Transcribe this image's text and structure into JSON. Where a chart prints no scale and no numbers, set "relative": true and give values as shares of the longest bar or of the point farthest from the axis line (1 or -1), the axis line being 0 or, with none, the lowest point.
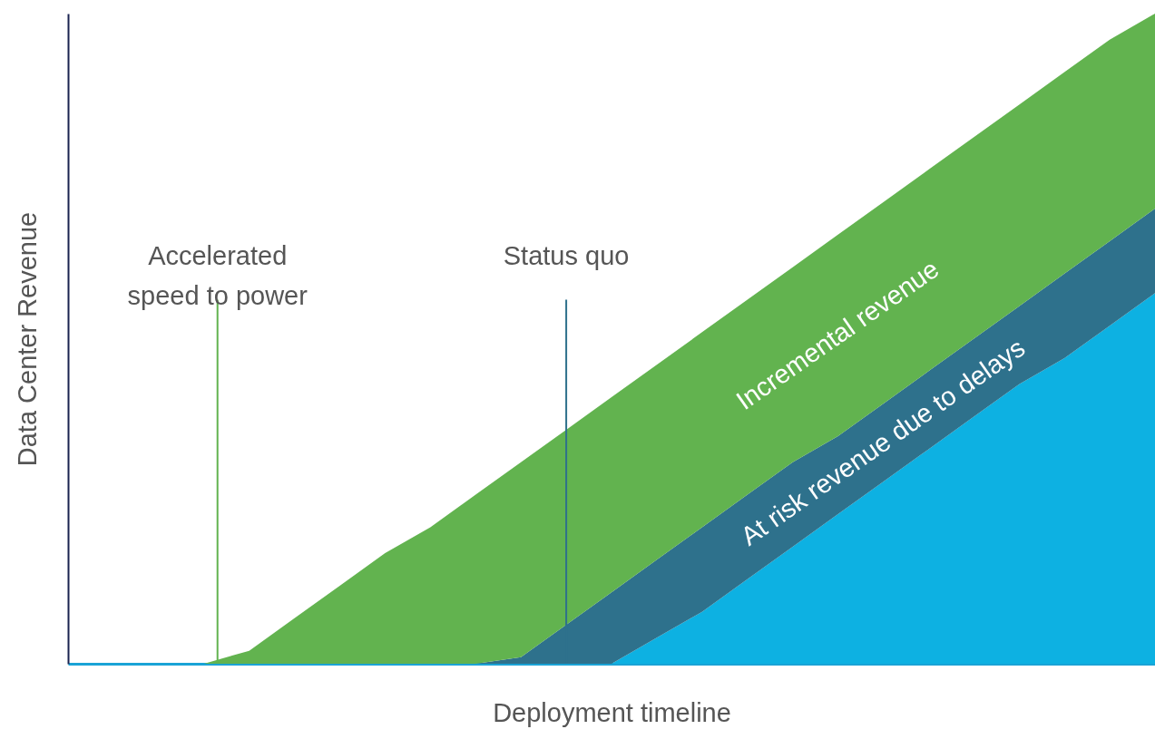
{
  "chart_data": {
    "type": "area",
    "relative": true,
    "stacked": true,
    "xlabel": "Deployment timeline",
    "ylabel": "Data Center Revenue",
    "tick_labels": false,
    "categories": [
      null,
      null,
      null,
      null,
      null,
      null,
      null,
      null,
      null,
      null,
      null,
      null,
      null,
      null,
      null,
      null,
      null,
      null,
      null,
      null,
      null,
      null,
      null,
      null,
      null
    ],
    "series": [
      {
        "color": "#0db1e2",
        "values": [
          0,
          0,
          0,
          0,
          0,
          0,
          0,
          0,
          0,
          0,
          0,
          0,
          0,
          0.04,
          0.08,
          0.13,
          0.18,
          0.23,
          0.28,
          0.33,
          0.38,
          0.43,
          0.47,
          0.52,
          0.57
        ]
      },
      {
        "name": "At risk revenue due to delays",
        "color": "#2e718c",
        "values": [
          0,
          0,
          0,
          0,
          0,
          0,
          0,
          0,
          0,
          0,
          0.01,
          0.06,
          0.11,
          0.12,
          0.13,
          0.13,
          0.13,
          0.12,
          0.12,
          0.12,
          0.12,
          0.12,
          0.13,
          0.13,
          0.13
        ]
      },
      {
        "name": "Incremental revenue",
        "color": "#62b34f",
        "values": [
          0,
          0,
          0,
          0,
          0.02,
          0.07,
          0.12,
          0.17,
          0.21,
          0.26,
          0.3,
          0.3,
          0.3,
          0.3,
          0.3,
          0.3,
          0.3,
          0.31,
          0.31,
          0.31,
          0.31,
          0.31,
          0.31,
          0.31,
          0.3
        ]
      }
    ],
    "annotations": [
      "Accelerated speed to power",
      "Status quo"
    ]
  }
}
